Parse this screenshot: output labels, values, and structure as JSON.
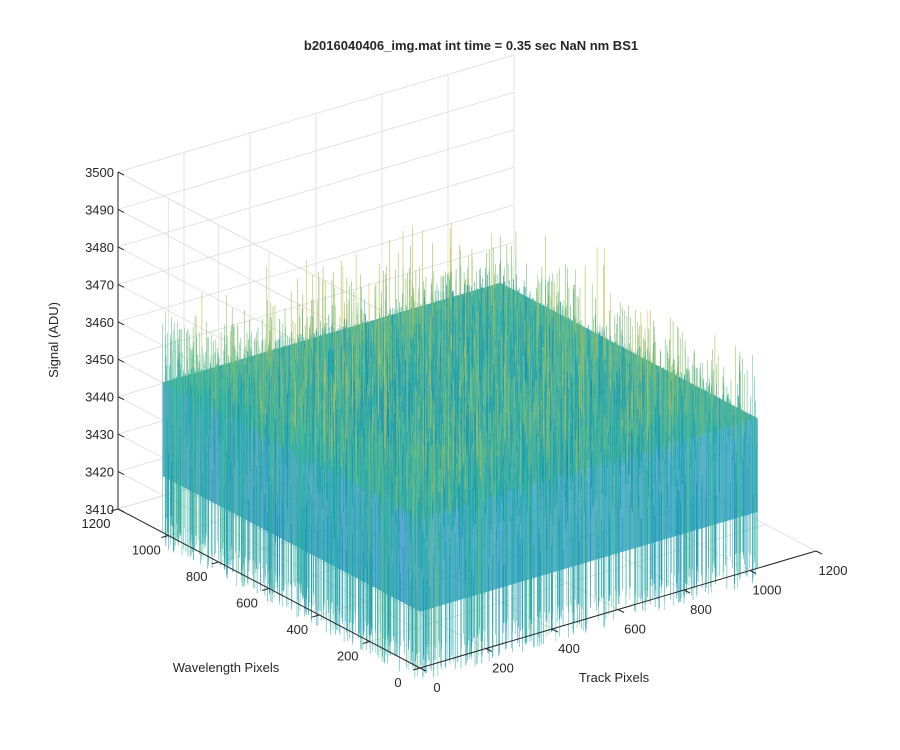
{
  "chart_data": {
    "type": "surface",
    "title": "b2016040406_img.mat int time = 0.35 sec  NaN nm BS1",
    "xlabel": "Track Pixels",
    "ylabel": "Wavelength Pixels",
    "zlabel": "Signal (ADU)",
    "xlim": [
      0,
      1200
    ],
    "ylim": [
      0,
      1200
    ],
    "zlim": [
      3410,
      3500
    ],
    "x_ticks": [
      "0",
      "200",
      "400",
      "600",
      "800",
      "1000",
      "1200"
    ],
    "y_ticks": [
      "0",
      "200",
      "400",
      "600",
      "800",
      "1000",
      "1200"
    ],
    "z_ticks": [
      "3410",
      "3420",
      "3430",
      "3440",
      "3450",
      "3460",
      "3470",
      "3480",
      "3490",
      "3500"
    ],
    "data_extent": {
      "x": [
        1,
        1024
      ],
      "y": [
        1,
        1024
      ]
    },
    "signal_mean": 3450,
    "signal_range": [
      3420,
      3480
    ],
    "grid": true,
    "colormap": "parula",
    "colors": {
      "low": "#0a7bc4",
      "mid": "#2bb7a6",
      "high": "#e8c53a"
    }
  }
}
